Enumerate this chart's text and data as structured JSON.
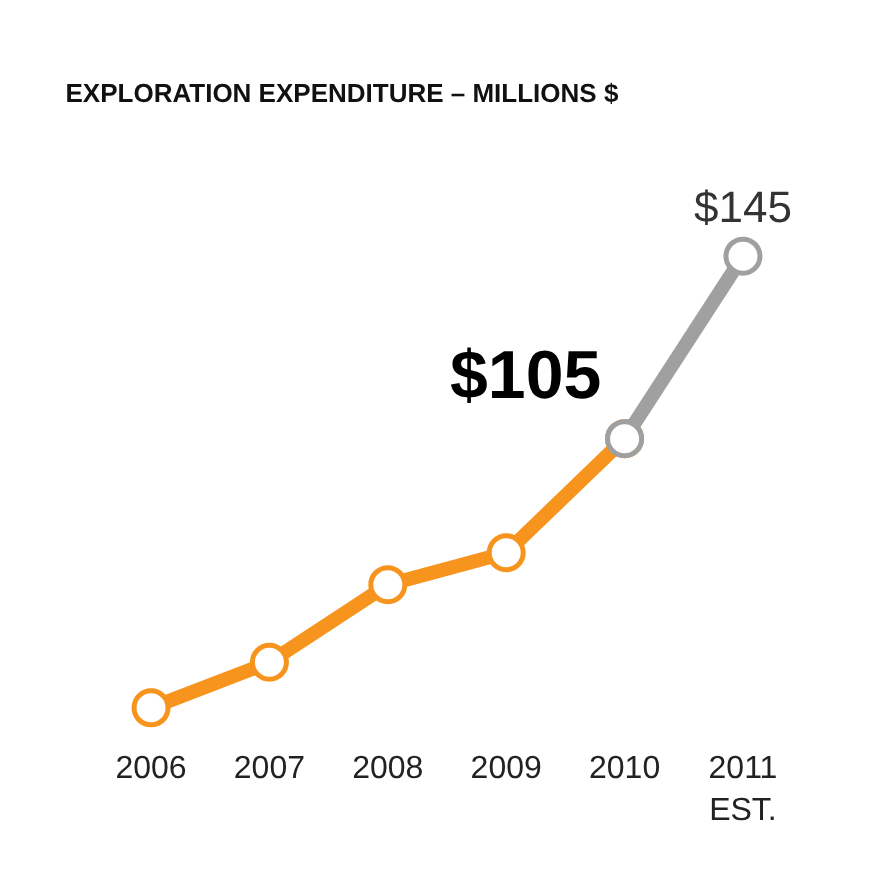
{
  "chart_data": {
    "type": "line",
    "title": "EXPLORATION EXPENDITURE – MILLIONS $",
    "categories": [
      "2006",
      "2007",
      "2008",
      "2009",
      "2010",
      "2011\nEST."
    ],
    "marker": "circle",
    "line_style": "solid",
    "series": [
      {
        "color": "#f7941d",
        "values": [
          46,
          56,
          73,
          80,
          105,
          null
        ],
        "value_labels": [
          null,
          null,
          null,
          null,
          "$105",
          null
        ]
      },
      {
        "color": "#a0a0a0",
        "values": [
          null,
          null,
          null,
          null,
          105,
          145
        ],
        "value_labels": [
          null,
          null,
          null,
          null,
          null,
          "$145"
        ]
      }
    ]
  }
}
